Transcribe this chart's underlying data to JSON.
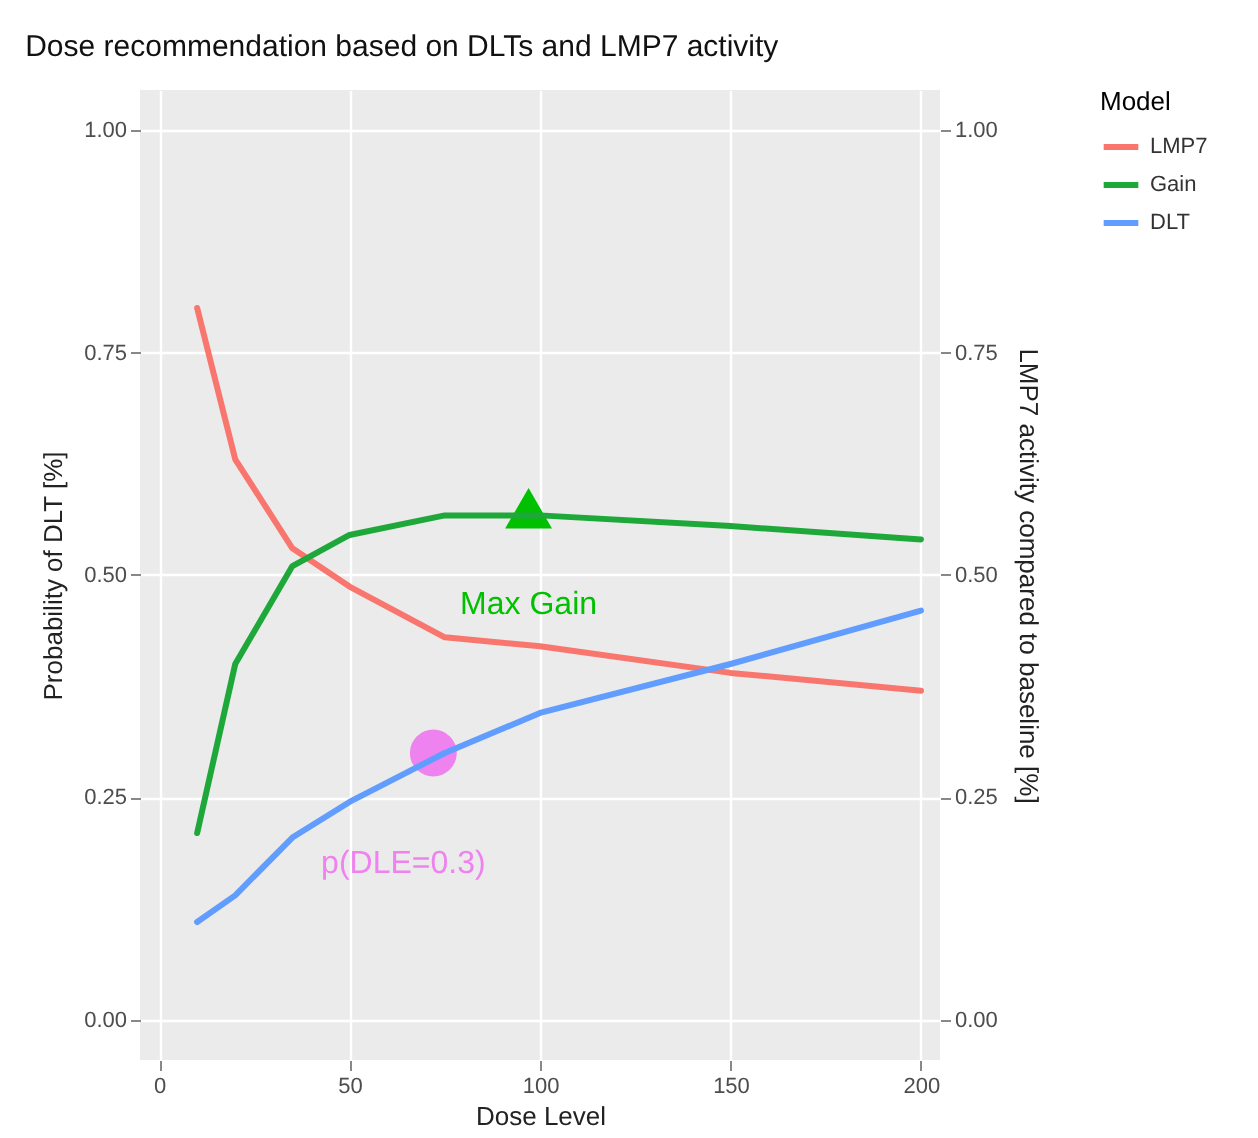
{
  "chart_data": {
    "type": "line",
    "title": "Dose recommendation based on DLTs and LMP7 activity",
    "xlabel": "Dose Level",
    "ylabel": "Probability of DLT [%]",
    "y2label": "LMP7 activity compared to baseline [%]",
    "legend_title": "Model",
    "x": [
      10,
      20,
      35,
      50,
      75,
      100,
      150,
      200
    ],
    "series": [
      {
        "name": "LMP7",
        "color": "#f8766d",
        "values": [
          0.8,
          0.63,
          0.53,
          0.487,
          0.43,
          0.42,
          0.39,
          0.37
        ]
      },
      {
        "name": "Gain",
        "color": "#1fa83a",
        "values": [
          0.21,
          0.4,
          0.51,
          0.545,
          0.567,
          0.567,
          0.555,
          0.54
        ]
      },
      {
        "name": "DLT",
        "color": "#619cff",
        "values": [
          0.11,
          0.14,
          0.205,
          0.245,
          0.3,
          0.345,
          0.4,
          0.46
        ]
      },
      {
        "type": "scatter",
        "color": "#ee82ee",
        "marker": "circle",
        "x": [
          72
        ],
        "values": [
          0.3
        ]
      },
      {
        "type": "scatter",
        "color": "#00c000",
        "marker": "triangle",
        "x": [
          97
        ],
        "values": [
          0.575
        ]
      }
    ],
    "annotations": [
      "Max Gain",
      "p(DLE=0.3)"
    ],
    "xlim": [
      -5,
      205
    ],
    "xticks": [
      0,
      50,
      100,
      150,
      200
    ],
    "ylim": [
      -0.045,
      1.045
    ],
    "yticks": [
      {
        "value": 0,
        "label": "0.00"
      },
      0.25,
      {
        "value": 0.5,
        "label": "0.50"
      },
      0.75,
      {
        "value": 1,
        "label": "1.00"
      }
    ],
    "y2lim": [
      -0.045,
      1.045
    ],
    "y2ticks": [
      {
        "value": 0,
        "label": "0.00"
      },
      0.25,
      {
        "value": 0.5,
        "label": "0.50"
      },
      0.75,
      {
        "value": 1,
        "label": "1.00"
      }
    ],
    "grid": true,
    "legend": "right",
    "marker": "none",
    "line_style": "solid"
  }
}
